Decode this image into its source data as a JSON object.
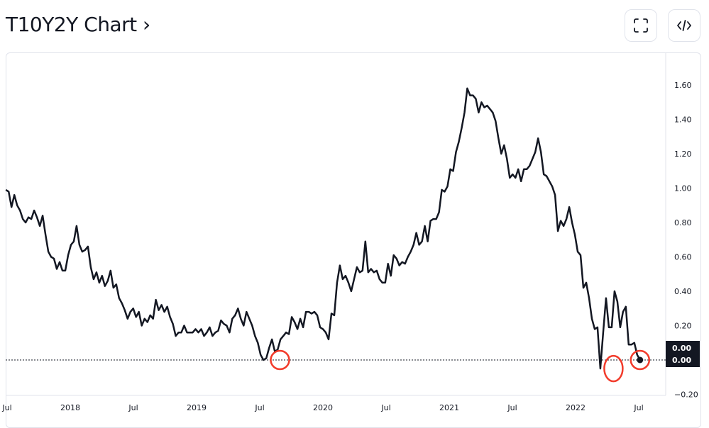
{
  "header": {
    "title": "T10Y2Y Chart ›",
    "fullscreen_icon": "fullscreen-icon",
    "embed_icon": "code-icon"
  },
  "chart_data": {
    "type": "line",
    "title": "T10Y2Y",
    "xlabel": "",
    "ylabel": "",
    "x_range": [
      2017.49,
      2022.51
    ],
    "ylim": [
      -0.2,
      1.7
    ],
    "x_ticks": [
      {
        "label": "Jul",
        "year": 2017.5
      },
      {
        "label": "2018",
        "year": 2018.0
      },
      {
        "label": "Jul",
        "year": 2018.5
      },
      {
        "label": "2019",
        "year": 2019.0
      },
      {
        "label": "Jul",
        "year": 2019.5
      },
      {
        "label": "2020",
        "year": 2020.0
      },
      {
        "label": "Jul",
        "year": 2020.5
      },
      {
        "label": "2021",
        "year": 2021.0
      },
      {
        "label": "Jul",
        "year": 2021.5
      },
      {
        "label": "2022",
        "year": 2022.0
      },
      {
        "label": "Jul",
        "year": 2022.5
      }
    ],
    "y_ticks": [
      {
        "label": "1.60",
        "value": 1.6
      },
      {
        "label": "1.40",
        "value": 1.4
      },
      {
        "label": "1.20",
        "value": 1.2
      },
      {
        "label": "1.00",
        "value": 1.0
      },
      {
        "label": "0.80",
        "value": 0.8
      },
      {
        "label": "0.60",
        "value": 0.6
      },
      {
        "label": "0.40",
        "value": 0.4
      },
      {
        "label": "0.20",
        "value": 0.2
      },
      {
        "label": "−0.20",
        "value": -0.2
      }
    ],
    "last_value_labels": [
      "0.00",
      "0.00"
    ],
    "reference_line": 0.0,
    "highlight_points": [
      {
        "year": 2019.66,
        "value": 0.0
      },
      {
        "year": 2022.3,
        "value": -0.05
      },
      {
        "year": 2022.51,
        "value": 0.0
      }
    ],
    "line_color": "#131722",
    "highlight_color": "#f23b2b",
    "values": [
      0.99,
      0.98,
      0.89,
      0.96,
      0.9,
      0.87,
      0.82,
      0.8,
      0.83,
      0.82,
      0.87,
      0.83,
      0.78,
      0.84,
      0.73,
      0.63,
      0.6,
      0.59,
      0.53,
      0.57,
      0.52,
      0.52,
      0.61,
      0.67,
      0.69,
      0.78,
      0.67,
      0.63,
      0.64,
      0.66,
      0.54,
      0.47,
      0.51,
      0.45,
      0.49,
      0.43,
      0.46,
      0.52,
      0.42,
      0.44,
      0.36,
      0.33,
      0.29,
      0.24,
      0.28,
      0.3,
      0.25,
      0.28,
      0.2,
      0.24,
      0.22,
      0.26,
      0.24,
      0.35,
      0.29,
      0.32,
      0.28,
      0.31,
      0.25,
      0.21,
      0.14,
      0.16,
      0.16,
      0.2,
      0.16,
      0.16,
      0.16,
      0.18,
      0.16,
      0.18,
      0.14,
      0.16,
      0.19,
      0.14,
      0.16,
      0.17,
      0.23,
      0.21,
      0.2,
      0.16,
      0.24,
      0.26,
      0.3,
      0.24,
      0.2,
      0.28,
      0.24,
      0.2,
      0.14,
      0.1,
      0.03,
      0.0,
      0.01,
      0.07,
      0.12,
      0.05,
      0.06,
      0.12,
      0.14,
      0.16,
      0.15,
      0.25,
      0.22,
      0.18,
      0.24,
      0.19,
      0.28,
      0.28,
      0.27,
      0.28,
      0.26,
      0.19,
      0.18,
      0.16,
      0.12,
      0.27,
      0.26,
      0.45,
      0.55,
      0.47,
      0.49,
      0.45,
      0.4,
      0.47,
      0.54,
      0.51,
      0.52,
      0.69,
      0.51,
      0.53,
      0.51,
      0.52,
      0.47,
      0.45,
      0.45,
      0.56,
      0.49,
      0.61,
      0.59,
      0.55,
      0.57,
      0.56,
      0.6,
      0.63,
      0.67,
      0.74,
      0.67,
      0.69,
      0.78,
      0.69,
      0.81,
      0.82,
      0.82,
      0.86,
      0.99,
      0.98,
      1.01,
      1.11,
      1.1,
      1.21,
      1.27,
      1.35,
      1.44,
      1.58,
      1.54,
      1.54,
      1.52,
      1.44,
      1.5,
      1.47,
      1.48,
      1.46,
      1.44,
      1.39,
      1.29,
      1.2,
      1.25,
      1.17,
      1.06,
      1.08,
      1.06,
      1.11,
      1.04,
      1.11,
      1.11,
      1.13,
      1.17,
      1.21,
      1.29,
      1.21,
      1.08,
      1.07,
      1.04,
      1.01,
      0.96,
      0.75,
      0.81,
      0.78,
      0.82,
      0.89,
      0.8,
      0.73,
      0.63,
      0.61,
      0.42,
      0.45,
      0.36,
      0.24,
      0.18,
      0.19,
      -0.05,
      0.16,
      0.36,
      0.19,
      0.19,
      0.4,
      0.34,
      0.19,
      0.28,
      0.31,
      0.09,
      0.09,
      0.1,
      0.03,
      0.0
    ]
  }
}
